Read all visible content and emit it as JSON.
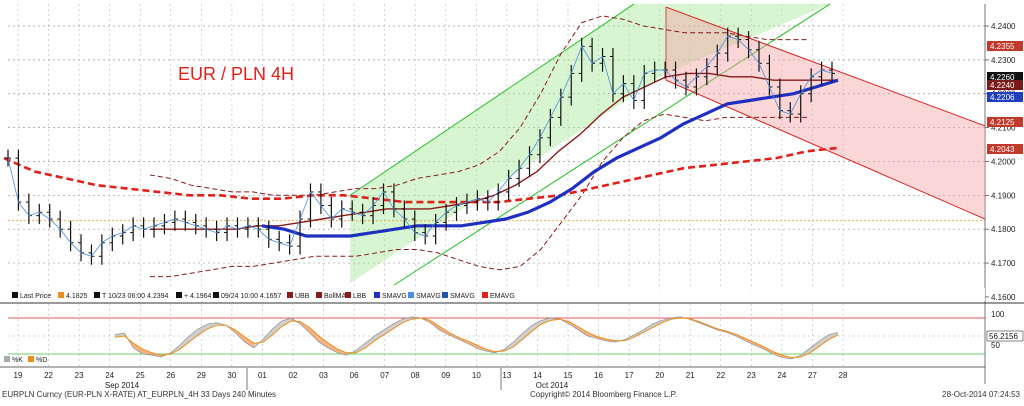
{
  "chart_data": {
    "type": "line",
    "title": "EUR / PLN 4H",
    "title_color": "#e0201b",
    "price_axis": {
      "ticks": [
        "4.2400",
        "4.2300",
        "4.2200",
        "4.2100",
        "4.2000",
        "4.1900",
        "4.1800",
        "4.1700",
        "4.1600"
      ],
      "ylim": [
        4.1585,
        4.2465
      ]
    },
    "price_tags": [
      {
        "label": "4.2355",
        "value": 4.2355,
        "color": "#c0392b"
      },
      {
        "label": "4.2260",
        "value": 4.226,
        "color": "#111111"
      },
      {
        "label": "4.2240",
        "value": 4.224,
        "color": "#7b1a1a"
      },
      {
        "label": "4.2206",
        "value": 4.2206,
        "color": "#1f3fbf"
      },
      {
        "label": "4.2125",
        "value": 4.2125,
        "color": "#c0392b"
      },
      {
        "label": "4.2043",
        "value": 4.2043,
        "color": "#c0392b"
      }
    ],
    "x_axis": {
      "date_labels": [
        "19",
        "22",
        "23",
        "24",
        "25",
        "26",
        "29",
        "30",
        "01",
        "02",
        "03",
        "06",
        "07",
        "08",
        "09",
        "10",
        "13",
        "14",
        "15",
        "16",
        "17",
        "20",
        "21",
        "22",
        "23",
        "24",
        "27",
        "28"
      ],
      "month_labels": [
        "Sep 2014",
        "Oct 2014"
      ]
    },
    "legend": [
      {
        "label": "Last Price",
        "color": "#111111"
      },
      {
        "label": "4.1825",
        "color": "#e8901c"
      },
      {
        "label": "T 10/23 06:00 4.2394",
        "color": "#111111"
      },
      {
        "label": "+ 4.1964",
        "color": "#111111"
      },
      {
        "label": "09/24 10:00 4.1657",
        "color": "#111111"
      },
      {
        "label": "UBB",
        "color": "#8b1a1a"
      },
      {
        "label": "BollMA",
        "color": "#8b1a1a"
      },
      {
        "label": "LBB",
        "color": "#8b1a1a"
      },
      {
        "label": "SMAVG",
        "color": "#1f2fbf"
      },
      {
        "label": "SMAVG",
        "color": "#4a90e2"
      },
      {
        "label": "SMAVG",
        "color": "#2255aa"
      },
      {
        "label": "EMAVG",
        "color": "#e0201b"
      }
    ],
    "price_series": {
      "name": "Last Price",
      "values": [
        4.201,
        4.188,
        4.184,
        4.185,
        4.183,
        4.18,
        4.176,
        4.173,
        4.172,
        4.176,
        4.178,
        4.179,
        4.181,
        4.18,
        4.181,
        4.182,
        4.183,
        4.182,
        4.181,
        4.18,
        4.179,
        4.181,
        4.18,
        4.181,
        4.18,
        4.177,
        4.176,
        4.175,
        4.183,
        4.191,
        4.187,
        4.183,
        4.186,
        4.185,
        4.184,
        4.187,
        4.191,
        4.186,
        4.183,
        4.179,
        4.178,
        4.182,
        4.185,
        4.187,
        4.188,
        4.189,
        4.188,
        4.191,
        4.195,
        4.198,
        4.202,
        4.207,
        4.213,
        4.219,
        4.226,
        4.234,
        4.229,
        4.231,
        4.22,
        4.223,
        4.218,
        4.226,
        4.227,
        4.227,
        4.224,
        4.222,
        4.225,
        4.228,
        4.232,
        4.237,
        4.236,
        4.233,
        4.229,
        4.222,
        4.215,
        4.214,
        4.22,
        4.225,
        4.227,
        4.226
      ]
    },
    "bollinger_upper": {
      "name": "UBB",
      "values": [
        4.196,
        4.195,
        4.193,
        4.192,
        4.191,
        4.191,
        4.19,
        4.19,
        4.19,
        4.191,
        4.192,
        4.192,
        4.193,
        4.195,
        4.196,
        4.197,
        4.199,
        4.203,
        4.21,
        4.22,
        4.232,
        4.241,
        4.243,
        4.242,
        4.24,
        4.239,
        4.238,
        4.238,
        4.238,
        4.237,
        4.236,
        4.236,
        4.236
      ]
    },
    "bollinger_mid": {
      "name": "BollMA",
      "values": [
        4.18,
        4.18,
        4.18,
        4.18,
        4.18,
        4.181,
        4.181,
        4.182,
        4.183,
        4.184,
        4.185,
        4.186,
        4.186,
        4.186,
        4.187,
        4.188,
        4.19,
        4.193,
        4.197,
        4.203,
        4.208,
        4.214,
        4.219,
        4.222,
        4.225,
        4.226,
        4.226,
        4.225,
        4.225,
        4.224,
        4.224,
        4.224,
        4.224
      ]
    },
    "bollinger_lower": {
      "name": "LBB",
      "values": [
        4.166,
        4.166,
        4.167,
        4.168,
        4.169,
        4.169,
        4.17,
        4.171,
        4.172,
        4.172,
        4.172,
        4.173,
        4.174,
        4.174,
        4.173,
        4.171,
        4.169,
        4.168,
        4.169,
        4.174,
        4.182,
        4.19,
        4.2,
        4.207,
        4.212,
        4.214,
        4.213,
        4.212,
        4.213,
        4.213,
        4.213,
        4.213,
        4.213
      ]
    },
    "sma_blue": {
      "name": "SMAVG",
      "values": [
        4.181,
        4.18,
        4.178,
        4.178,
        4.178,
        4.179,
        4.18,
        4.181,
        4.181,
        4.181,
        4.182,
        4.183,
        4.185,
        4.188,
        4.192,
        4.197,
        4.201,
        4.204,
        4.207,
        4.211,
        4.214,
        4.217,
        4.218,
        4.219,
        4.22,
        4.222,
        4.224
      ]
    },
    "ema_red": {
      "name": "EMAVG",
      "values": [
        4.201,
        4.197,
        4.195,
        4.193,
        4.192,
        4.191,
        4.19,
        4.19,
        4.189,
        4.189,
        4.19,
        4.19,
        4.189,
        4.188,
        4.188,
        4.188,
        4.188,
        4.189,
        4.19,
        4.192,
        4.194,
        4.196,
        4.198,
        4.199,
        4.2,
        4.201,
        4.203,
        4.204
      ]
    },
    "green_channel": {
      "lower_start": [
        4.1697,
        4.1737
      ],
      "lower_end": [
        4.228,
        4.246
      ],
      "upper_start": [
        4.1897,
        4.1937
      ],
      "upper_end": [
        4.243,
        4.246
      ]
    },
    "red_channel": {
      "upper_start": 4.2456,
      "upper_end": 4.2105,
      "lower_start": 4.224,
      "lower_end": 4.183
    },
    "horizontal_lines": [
      {
        "value": 4.1825,
        "color": "#e8901c"
      }
    ],
    "oscillator": {
      "ticks": [
        "100",
        "50"
      ],
      "value_label": "56.2156",
      "ylim": [
        0,
        100
      ],
      "overbought": 80,
      "oversold": 20,
      "k_series": {
        "name": "%K",
        "values": [
          52,
          55,
          30,
          20,
          18,
          15,
          22,
          35,
          50,
          62,
          70,
          72,
          68,
          55,
          40,
          30,
          45,
          62,
          75,
          80,
          70,
          55,
          40,
          30,
          22,
          18,
          26,
          38,
          50,
          60,
          70,
          78,
          82,
          80,
          72,
          60,
          52,
          45,
          38,
          30,
          25,
          22,
          28,
          40,
          55,
          68,
          76,
          80,
          78,
          70,
          60,
          50,
          46,
          42,
          40,
          44,
          52,
          60,
          70,
          76,
          80,
          82,
          78,
          72,
          66,
          60,
          56,
          50,
          42,
          35,
          28,
          20,
          14,
          12,
          18,
          30,
          42,
          52,
          56
        ]
      },
      "d_series": {
        "name": "%D",
        "values": [
          48,
          50,
          38,
          28,
          22,
          18,
          20,
          28,
          40,
          52,
          62,
          68,
          68,
          60,
          48,
          38,
          40,
          52,
          66,
          75,
          74,
          64,
          50,
          38,
          28,
          22,
          22,
          30,
          42,
          52,
          62,
          72,
          78,
          80,
          76,
          66,
          56,
          48,
          42,
          35,
          28,
          24,
          25,
          32,
          45,
          58,
          70,
          76,
          78,
          74,
          65,
          56,
          49,
          45,
          42,
          42,
          48,
          56,
          64,
          72,
          78,
          80,
          79,
          74,
          68,
          62,
          58,
          53,
          46,
          39,
          32,
          24,
          18,
          14,
          15,
          22,
          33,
          44,
          52
        ]
      },
      "legend": [
        {
          "label": "%K",
          "color": "#aaaaaa"
        },
        {
          "label": "%D",
          "color": "#e8901c"
        }
      ]
    }
  },
  "footer": {
    "left": "EURPLN Curncy (EUR-PLN X-RATE) AT_EURPLN_4H 33 Days 240 Minutes",
    "center": "Copyright© 2014 Bloomberg Finance L.P.",
    "right": "28-Oct-2014 07:24:53"
  }
}
